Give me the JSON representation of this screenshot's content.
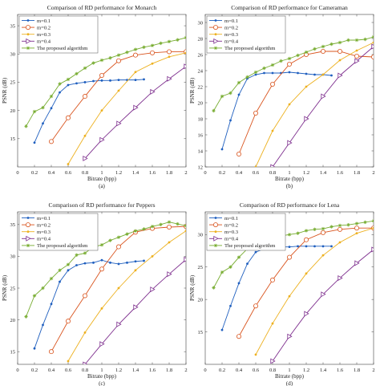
{
  "chart_data": [
    {
      "type": "line",
      "title": "Comparison of RD performance for Monarch",
      "xlabel": "Bitrate (bpp)",
      "ylabel": "PSNR (dB)",
      "caption": "(a)",
      "xlim": [
        0,
        2
      ],
      "ylim": [
        10,
        37
      ],
      "xticks": [
        "0",
        "0.2",
        "0.4",
        "0.6",
        "0.8",
        "1",
        "1.2",
        "1.4",
        "1.6",
        "1.8",
        "2"
      ],
      "xtick_values": [
        0,
        0.2,
        0.4,
        0.6,
        0.8,
        1,
        1.2,
        1.4,
        1.6,
        1.8,
        2
      ],
      "yticks": [
        "15",
        "20",
        "25",
        "30",
        "35"
      ],
      "ytick_values": [
        15,
        20,
        25,
        30,
        35
      ],
      "legend": "top-left",
      "grid": false,
      "series": [
        {
          "name": "m=0.1",
          "color": "#1f5fbf",
          "marker": "dot",
          "x": [
            0.2,
            0.3,
            0.4,
            0.5,
            0.6,
            0.7,
            0.8,
            0.9,
            1.0,
            1.1,
            1.2,
            1.3,
            1.4,
            1.5
          ],
          "y": [
            14.3,
            17.7,
            20.4,
            23.2,
            24.5,
            24.8,
            25.0,
            25.2,
            25.3,
            25.3,
            25.4,
            25.4,
            25.4,
            25.5
          ]
        },
        {
          "name": "m=0.2",
          "color": "#d9541e",
          "marker": "circle",
          "x": [
            0.4,
            0.6,
            0.8,
            1.0,
            1.2,
            1.4,
            1.6,
            1.8,
            2.0
          ],
          "y": [
            14.5,
            18.7,
            22.5,
            26.2,
            28.8,
            29.8,
            30.2,
            30.4,
            30.4
          ]
        },
        {
          "name": "m=0.3",
          "color": "#edb120",
          "marker": "dot",
          "x": [
            0.6,
            0.8,
            1.0,
            1.2,
            1.4,
            1.6,
            1.8,
            2.0
          ],
          "y": [
            10.5,
            15.5,
            20.0,
            23.5,
            26.8,
            28.3,
            29.5,
            30.2
          ]
        },
        {
          "name": "m=0.4",
          "color": "#7e2f8e",
          "marker": "triangle",
          "x": [
            0.8,
            1.0,
            1.2,
            1.4,
            1.6,
            1.8,
            2.0
          ],
          "y": [
            11.5,
            14.8,
            17.7,
            20.5,
            23.3,
            25.6,
            27.8
          ]
        },
        {
          "name": "The proposed algorithm",
          "color": "#77ac30",
          "marker": "star",
          "x": [
            0.1,
            0.2,
            0.3,
            0.4,
            0.5,
            0.6,
            0.7,
            0.8,
            0.9,
            1.0,
            1.1,
            1.2,
            1.3,
            1.4,
            1.5,
            1.6,
            1.7,
            1.8,
            1.9,
            2.0
          ],
          "y": [
            17.2,
            19.8,
            20.5,
            22.5,
            24.7,
            25.5,
            26.5,
            27.5,
            28.4,
            28.9,
            29.3,
            29.8,
            30.3,
            30.8,
            31.2,
            31.5,
            31.9,
            32.2,
            32.5,
            32.9
          ]
        }
      ]
    },
    {
      "type": "line",
      "title": "Comparison of RD performance for Cameraman",
      "xlabel": "Bitrate (bpp)",
      "ylabel": "PSNR (dB)",
      "caption": "(b)",
      "xlim": [
        0,
        2
      ],
      "ylim": [
        12,
        31
      ],
      "xticks": [
        "0",
        "0.2",
        "0.4",
        "0.6",
        "0.8",
        "1",
        "1.2",
        "1.4",
        "1.6",
        "1.8",
        "2"
      ],
      "xtick_values": [
        0,
        0.2,
        0.4,
        0.6,
        0.8,
        1,
        1.2,
        1.4,
        1.6,
        1.8,
        2
      ],
      "yticks": [
        "12",
        "14",
        "16",
        "18",
        "20",
        "22",
        "24",
        "26",
        "28",
        "30"
      ],
      "ytick_values": [
        12,
        14,
        16,
        18,
        20,
        22,
        24,
        26,
        28,
        30
      ],
      "legend": "top-left",
      "grid": false,
      "series": [
        {
          "name": "m=0.1",
          "color": "#1f5fbf",
          "marker": "dot",
          "x": [
            0.2,
            0.3,
            0.4,
            0.5,
            0.6,
            0.7,
            0.8,
            0.9,
            1.0,
            1.1,
            1.2,
            1.3,
            1.4,
            1.5
          ],
          "y": [
            14.2,
            17.8,
            21.0,
            23.0,
            23.5,
            23.7,
            23.7,
            23.7,
            23.8,
            23.7,
            23.6,
            23.5,
            23.5,
            23.4
          ]
        },
        {
          "name": "m=0.2",
          "color": "#d9541e",
          "marker": "circle",
          "x": [
            0.4,
            0.6,
            0.8,
            1.0,
            1.2,
            1.4,
            1.6,
            1.8,
            2.0
          ],
          "y": [
            13.6,
            18.7,
            22.3,
            24.8,
            26.0,
            26.4,
            26.4,
            25.8,
            25.7
          ]
        },
        {
          "name": "m=0.3",
          "color": "#edb120",
          "marker": "dot",
          "x": [
            0.6,
            0.8,
            1.0,
            1.2,
            1.4,
            1.6,
            1.8,
            2.0
          ],
          "y": [
            12.0,
            16.5,
            19.8,
            22.0,
            23.5,
            25.3,
            26.5,
            27.5
          ]
        },
        {
          "name": "m=0.4",
          "color": "#7e2f8e",
          "marker": "triangle",
          "x": [
            0.8,
            1.0,
            1.2,
            1.4,
            1.6,
            1.8,
            2.0
          ],
          "y": [
            12.0,
            15.0,
            18.0,
            20.8,
            23.4,
            25.2,
            27.0
          ]
        },
        {
          "name": "The proposed algorithm",
          "color": "#77ac30",
          "marker": "star",
          "x": [
            0.1,
            0.2,
            0.3,
            0.4,
            0.5,
            0.6,
            0.7,
            0.8,
            0.9,
            1.0,
            1.1,
            1.2,
            1.3,
            1.4,
            1.5,
            1.6,
            1.7,
            1.8,
            1.9,
            2.0
          ],
          "y": [
            19.0,
            20.8,
            21.2,
            22.5,
            23.2,
            23.8,
            24.3,
            24.7,
            25.2,
            25.5,
            25.9,
            26.3,
            26.7,
            27.0,
            27.3,
            27.5,
            27.8,
            27.8,
            27.9,
            28.2
          ]
        }
      ]
    },
    {
      "type": "line",
      "title": "Comparison of RD performance for Peppers",
      "xlabel": "Bitrate (bpp)",
      "ylabel": "PSNR (dB)",
      "caption": "(c)",
      "xlim": [
        0,
        2
      ],
      "ylim": [
        13,
        37
      ],
      "xticks": [
        "0",
        "0.2",
        "0.4",
        "0.6",
        "0.8",
        "1",
        "1.2",
        "1.4",
        "1.6",
        "1.8",
        "2"
      ],
      "xtick_values": [
        0,
        0.2,
        0.4,
        0.6,
        0.8,
        1,
        1.2,
        1.4,
        1.6,
        1.8,
        2
      ],
      "yticks": [
        "15",
        "20",
        "25",
        "30",
        "35"
      ],
      "ytick_values": [
        15,
        20,
        25,
        30,
        35
      ],
      "legend": "top-left",
      "grid": false,
      "series": [
        {
          "name": "m=0.1",
          "color": "#1f5fbf",
          "marker": "dot",
          "x": [
            0.2,
            0.3,
            0.4,
            0.5,
            0.6,
            0.7,
            0.8,
            0.9,
            1.0,
            1.1,
            1.2,
            1.3,
            1.4,
            1.5
          ],
          "y": [
            15.5,
            19.2,
            22.5,
            26.0,
            27.8,
            28.6,
            28.9,
            29.0,
            29.4,
            29.0,
            28.8,
            29.0,
            29.2,
            29.3
          ]
        },
        {
          "name": "m=0.2",
          "color": "#d9541e",
          "marker": "circle",
          "x": [
            0.4,
            0.6,
            0.8,
            1.0,
            1.2,
            1.4,
            1.6,
            1.8,
            2.0
          ],
          "y": [
            15.0,
            19.8,
            23.8,
            28.0,
            31.5,
            33.8,
            34.4,
            34.6,
            34.7
          ]
        },
        {
          "name": "m=0.3",
          "color": "#edb120",
          "marker": "dot",
          "x": [
            0.6,
            0.8,
            1.0,
            1.2,
            1.4,
            1.6,
            1.8,
            2.0
          ],
          "y": [
            13.5,
            18.0,
            21.8,
            25.0,
            27.8,
            30.0,
            32.2,
            34.0
          ]
        },
        {
          "name": "m=0.4",
          "color": "#7e2f8e",
          "marker": "triangle",
          "x": [
            0.8,
            1.0,
            1.2,
            1.4,
            1.6,
            1.8,
            2.0
          ],
          "y": [
            13.0,
            16.2,
            19.3,
            22.0,
            24.8,
            27.2,
            29.5
          ]
        },
        {
          "name": "The proposed algorithm",
          "color": "#77ac30",
          "marker": "star",
          "x": [
            0.1,
            0.2,
            0.3,
            0.4,
            0.5,
            0.6,
            0.7,
            0.8,
            0.9,
            1.0,
            1.1,
            1.2,
            1.3,
            1.4,
            1.5,
            1.6,
            1.7,
            1.8,
            1.9,
            2.0
          ],
          "y": [
            20.5,
            23.8,
            25.0,
            26.5,
            27.8,
            28.7,
            30.2,
            30.5,
            31.5,
            31.8,
            32.5,
            33.0,
            33.5,
            34.0,
            34.3,
            34.7,
            35.0,
            35.4,
            35.1,
            34.8
          ]
        }
      ]
    },
    {
      "type": "line",
      "title": "Comparison of RD performance for Lena",
      "xlabel": "Bitrate (bpp)",
      "ylabel": "PSNR (dB)",
      "caption": "(d)",
      "xlim": [
        0,
        2
      ],
      "ylim": [
        10,
        33.5
      ],
      "xticks": [
        "0",
        "0.2",
        "0.4",
        "0.6",
        "0.8",
        "1",
        "1.2",
        "1.4",
        "1.6",
        "1.8",
        "2"
      ],
      "xtick_values": [
        0,
        0.2,
        0.4,
        0.6,
        0.8,
        1,
        1.2,
        1.4,
        1.6,
        1.8,
        2
      ],
      "yticks": [
        "15",
        "20",
        "25",
        "30"
      ],
      "ytick_values": [
        15,
        20,
        25,
        30
      ],
      "legend": "top-left",
      "grid": false,
      "series": [
        {
          "name": "m=0.1",
          "color": "#1f5fbf",
          "marker": "dot",
          "x": [
            0.2,
            0.3,
            0.4,
            0.5,
            0.6,
            0.7,
            0.8,
            0.9,
            1.0,
            1.1,
            1.2,
            1.3,
            1.4,
            1.5
          ],
          "y": [
            15.3,
            19.0,
            22.5,
            25.5,
            27.3,
            27.8,
            28.0,
            28.1,
            28.1,
            28.2,
            28.2,
            28.2,
            28.2,
            28.2
          ]
        },
        {
          "name": "m=0.2",
          "color": "#d9541e",
          "marker": "circle",
          "x": [
            0.4,
            0.6,
            0.8,
            1.0,
            1.2,
            1.4,
            1.6,
            1.8,
            2.0
          ],
          "y": [
            14.3,
            19.0,
            23.0,
            26.5,
            29.2,
            30.3,
            30.8,
            31.0,
            31.0
          ]
        },
        {
          "name": "m=0.3",
          "color": "#edb120",
          "marker": "dot",
          "x": [
            0.6,
            0.8,
            1.0,
            1.2,
            1.4,
            1.6,
            1.8,
            2.0
          ],
          "y": [
            11.5,
            16.3,
            20.5,
            24.0,
            26.8,
            28.8,
            30.2,
            31.0
          ]
        },
        {
          "name": "m=0.4",
          "color": "#7e2f8e",
          "marker": "triangle",
          "x": [
            0.8,
            1.0,
            1.2,
            1.4,
            1.6,
            1.8,
            2.0
          ],
          "y": [
            10.5,
            14.3,
            17.8,
            20.8,
            23.3,
            25.6,
            27.7
          ]
        },
        {
          "name": "The proposed algorithm",
          "color": "#77ac30",
          "marker": "star",
          "x": [
            0.1,
            0.2,
            0.3,
            0.4,
            0.5,
            0.6,
            0.7,
            0.8,
            0.9,
            1.0,
            1.1,
            1.2,
            1.3,
            1.4,
            1.5,
            1.6,
            1.7,
            1.8,
            1.9,
            2.0
          ],
          "y": [
            21.8,
            24.2,
            25.0,
            26.5,
            27.8,
            28.2,
            28.8,
            29.3,
            29.8,
            30.0,
            30.2,
            30.6,
            30.8,
            30.9,
            31.2,
            31.4,
            31.5,
            31.7,
            31.9,
            32.1
          ]
        }
      ]
    }
  ]
}
